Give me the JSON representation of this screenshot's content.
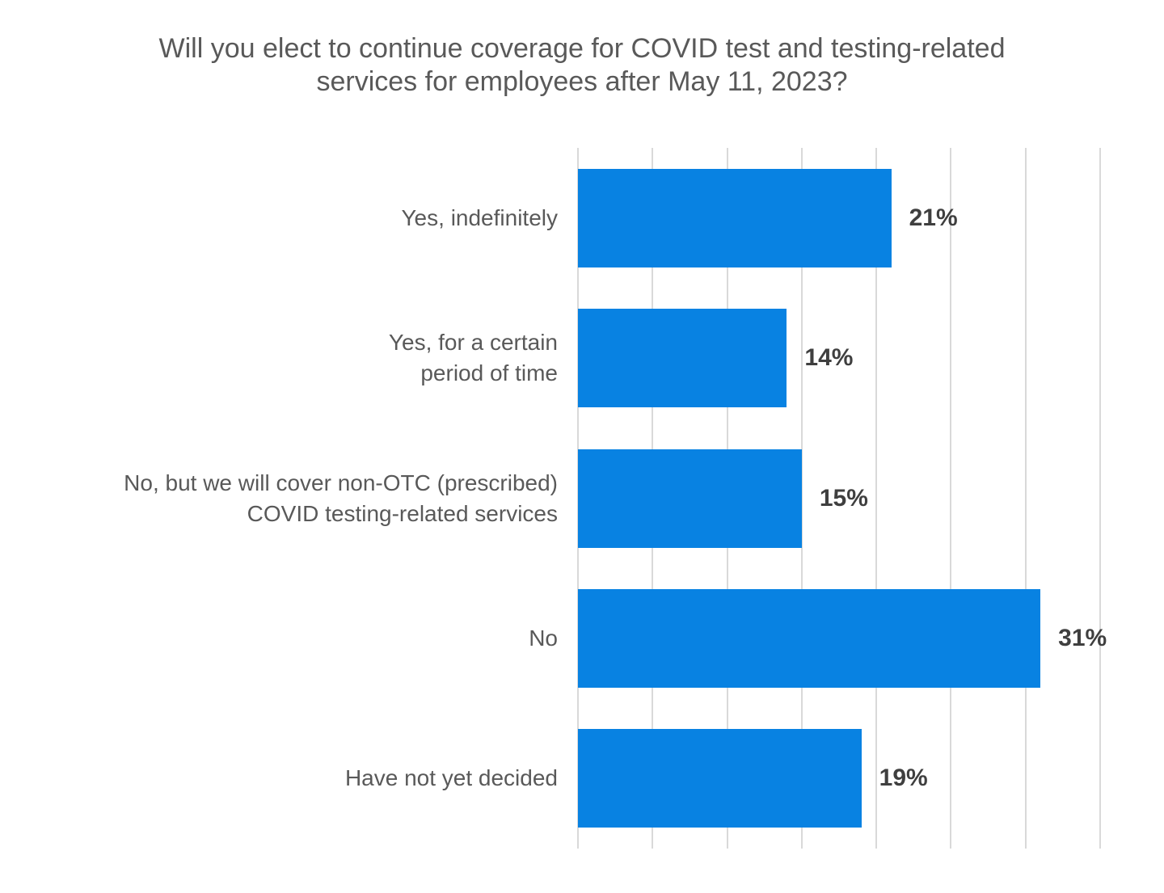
{
  "colors": {
    "bar": "#0882e2",
    "gridline": "#d9d9d9",
    "title_text": "#595959",
    "category_text": "#595959",
    "value_text": "#3f3f3f",
    "background": "#ffffff"
  },
  "chart_data": {
    "type": "bar",
    "orientation": "horizontal",
    "title": "Will you elect to continue coverage for COVID test and testing-related\nservices for employees after May 11, 2023?",
    "categories": [
      "Yes, indefinitely",
      "Yes, for a certain\nperiod of time",
      "No, but we will cover non-OTC (prescribed)\nCOVID testing-related services",
      "No",
      "Have not yet decided"
    ],
    "values": [
      21,
      14,
      15,
      31,
      19
    ],
    "value_labels": [
      "21%",
      "14%",
      "15%",
      "31%",
      "19%"
    ],
    "xlabel": "",
    "ylabel": "",
    "xlim": [
      0,
      35
    ],
    "gridline_step": 5,
    "grid": true,
    "legend": false,
    "data_label_position": "outside-end"
  }
}
